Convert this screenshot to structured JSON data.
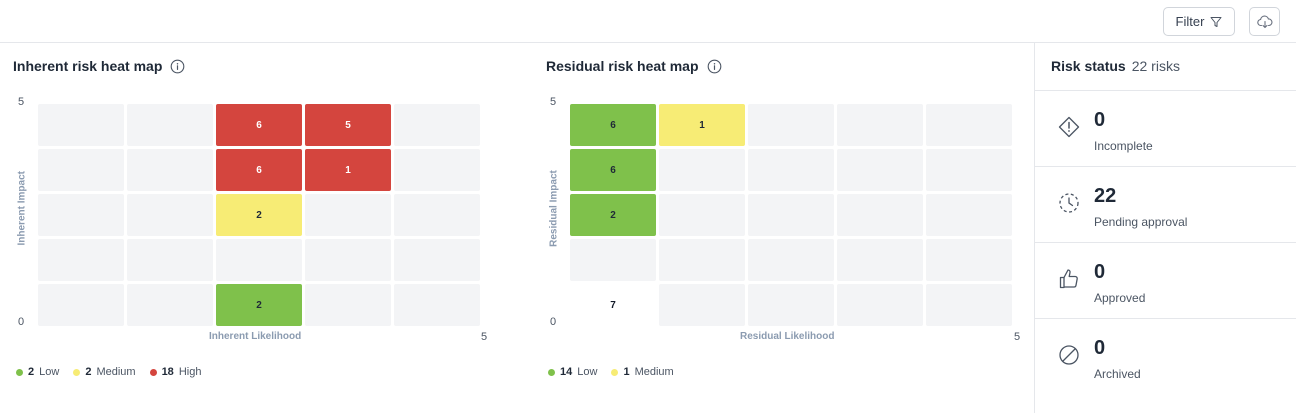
{
  "toolbar": {
    "filter_label": "Filter"
  },
  "inherent": {
    "title": "Inherent risk heat map",
    "y_axis_label": "Inherent Impact",
    "x_axis_label": "Inherent Likelihood",
    "y_max": "5",
    "y_min": "0",
    "x_max": "5",
    "cells": {
      "r1c3": "6",
      "r1c4": "5",
      "r2c3": "6",
      "r2c4": "1",
      "r3c3": "2",
      "r5c3": "2"
    },
    "legend": [
      {
        "count": "2",
        "label": "Low",
        "color": "#7fc14b"
      },
      {
        "count": "2",
        "label": "Medium",
        "color": "#f7ec75"
      },
      {
        "count": "18",
        "label": "High",
        "color": "#d4453e"
      }
    ]
  },
  "residual": {
    "title": "Residual risk heat map",
    "y_axis_label": "Residual Impact",
    "x_axis_label": "Residual Likelihood",
    "y_max": "5",
    "y_min": "0",
    "x_max": "5",
    "cells": {
      "r1c1": "6",
      "r1c2": "1",
      "r2c1": "6",
      "r3c1": "2",
      "r5c1": "7"
    },
    "legend": [
      {
        "count": "14",
        "label": "Low",
        "color": "#7fc14b"
      },
      {
        "count": "1",
        "label": "Medium",
        "color": "#f7ec75"
      }
    ]
  },
  "status": {
    "title": "Risk status",
    "subtitle": "22 risks",
    "items": [
      {
        "count": "0",
        "label": "Incomplete",
        "icon": "warning-diamond-icon"
      },
      {
        "count": "22",
        "label": "Pending approval",
        "icon": "pending-clock-icon"
      },
      {
        "count": "0",
        "label": "Approved",
        "icon": "thumbs-up-icon"
      },
      {
        "count": "0",
        "label": "Archived",
        "icon": "archived-circle-icon"
      }
    ]
  }
}
